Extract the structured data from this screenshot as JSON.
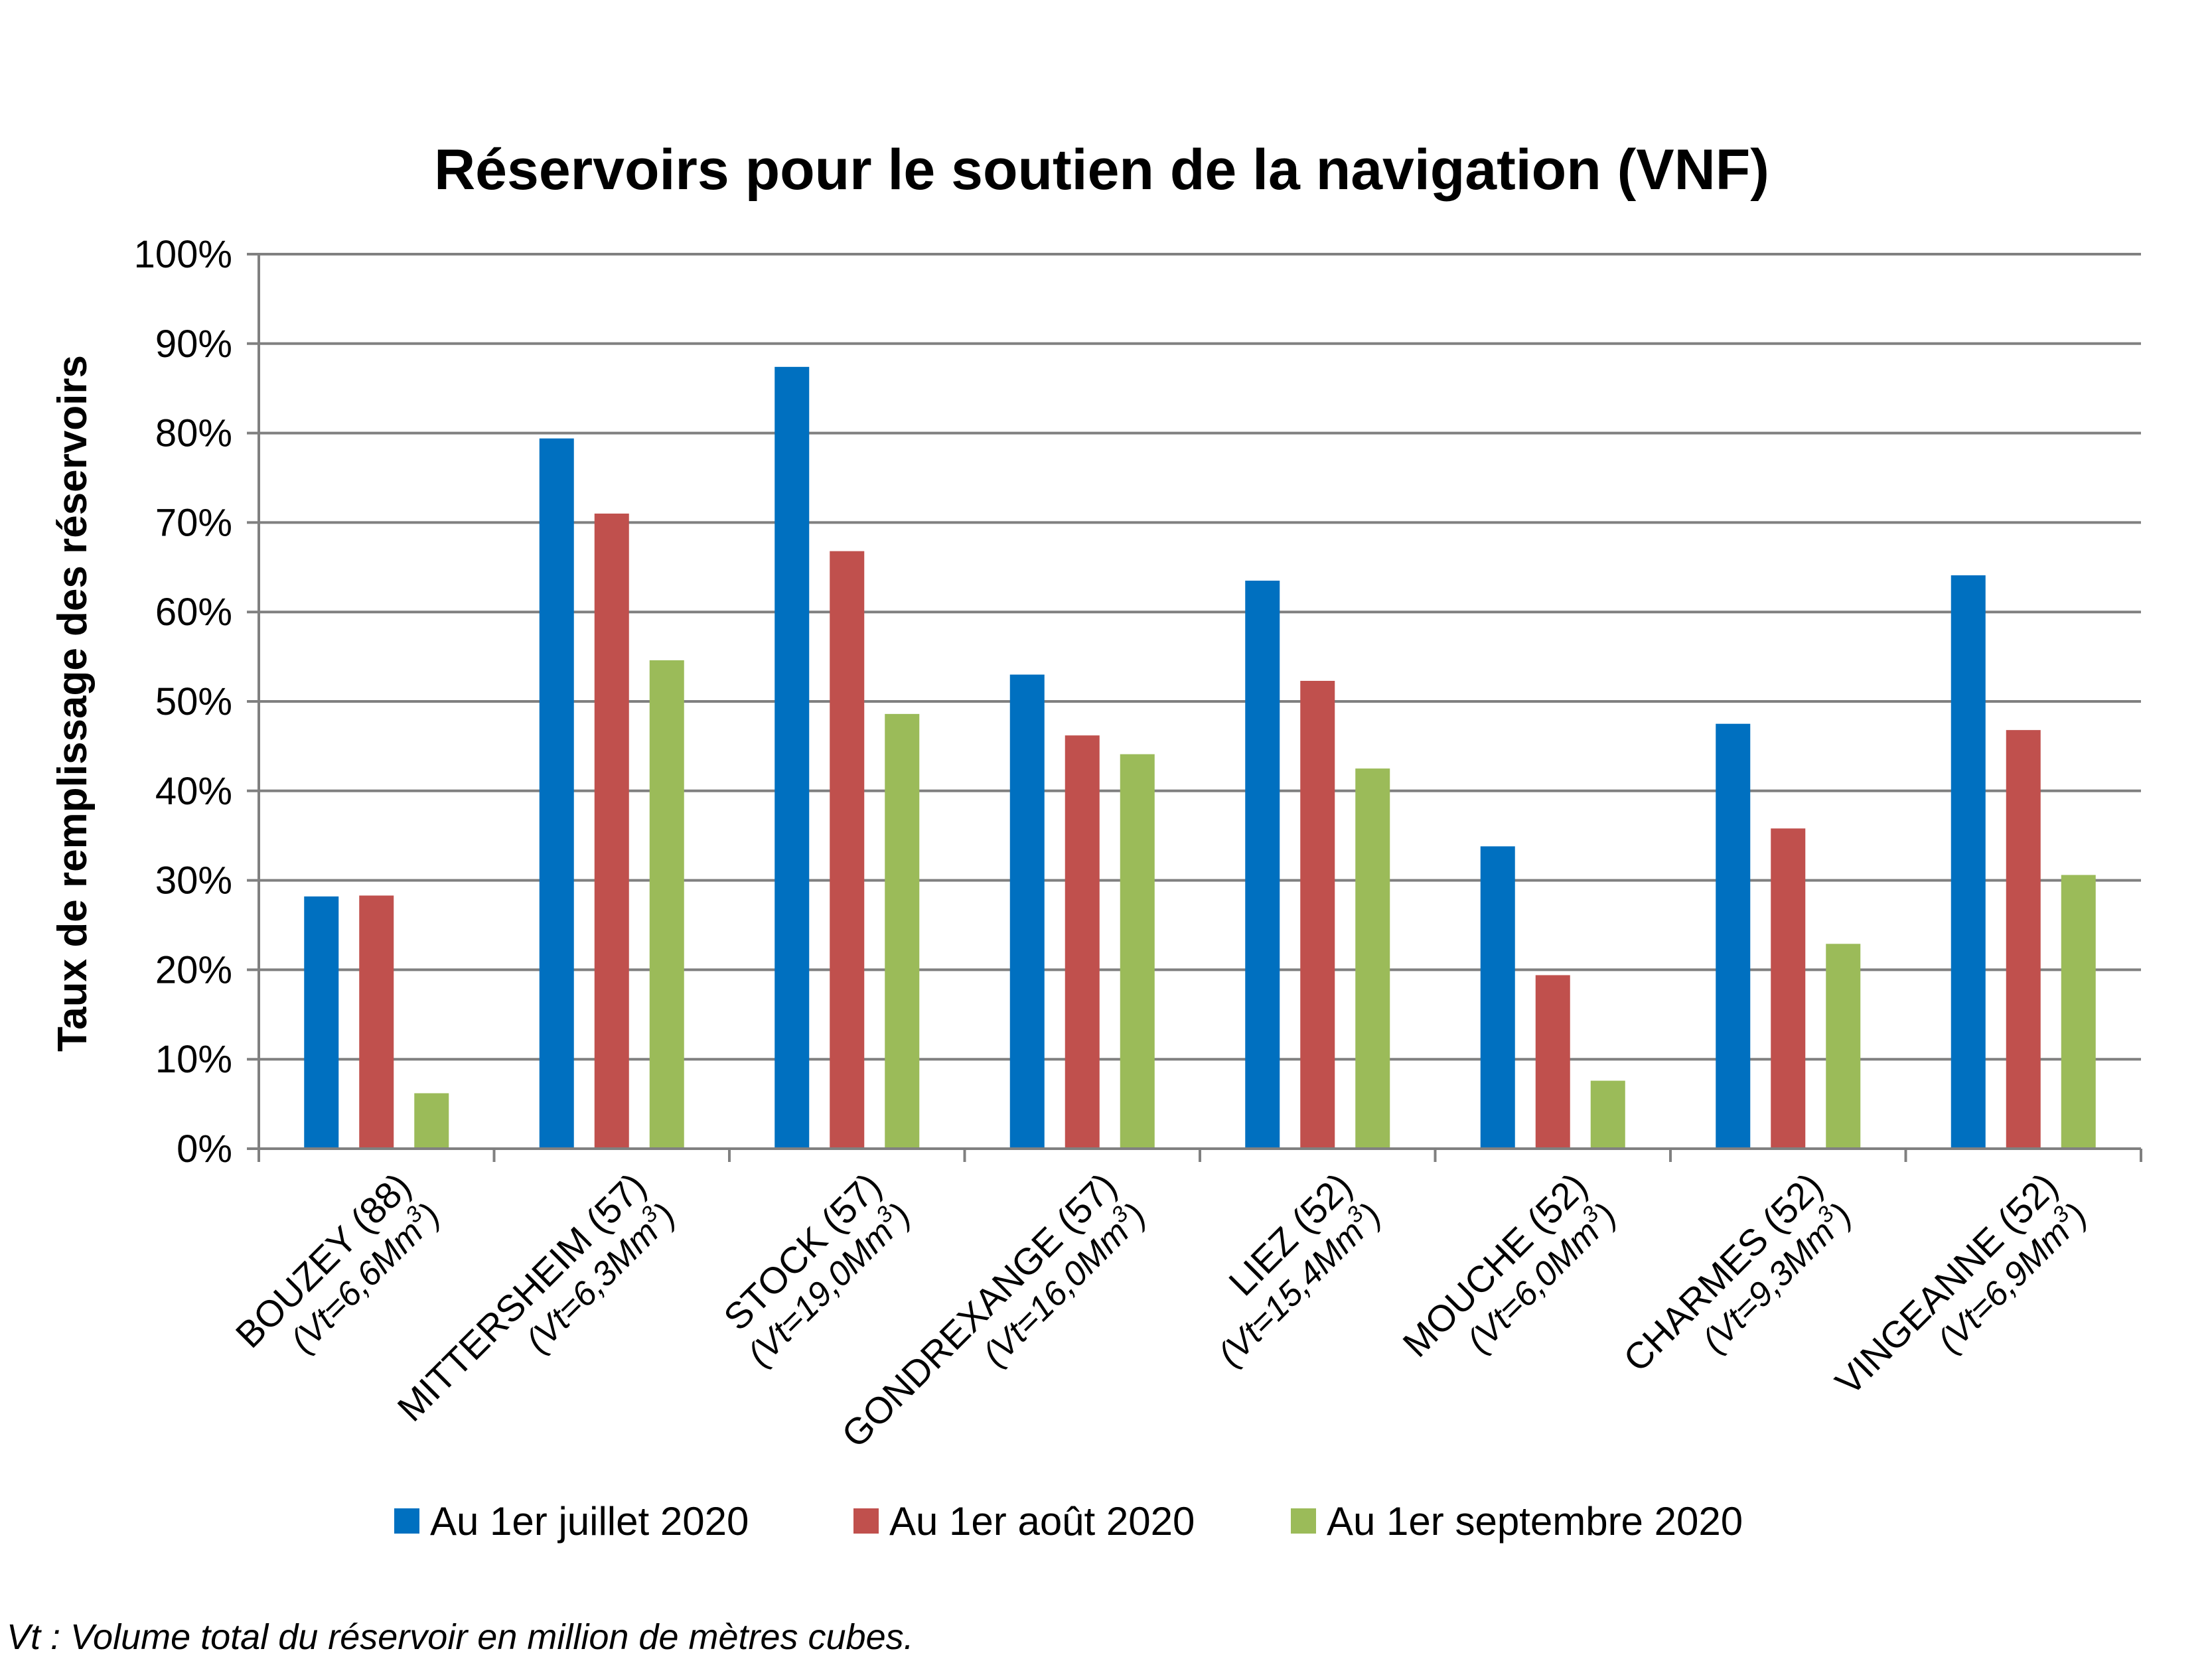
{
  "chart_data": {
    "type": "bar",
    "title": "Réservoirs pour le soutien de la navigation (VNF)",
    "ylabel": "Taux de remplissage des réservoirs",
    "xlabel": "",
    "ylim": [
      0,
      100
    ],
    "y_ticks": [
      "0%",
      "10%",
      "20%",
      "30%",
      "40%",
      "50%",
      "60%",
      "70%",
      "80%",
      "90%",
      "100%"
    ],
    "grid": true,
    "legend_position": "bottom",
    "categories": [
      "BOUZEY (88) (Vt=6,6Mm3)",
      "MITTERSHEIM (57) (Vt=6,3Mm3)",
      "STOCK (57) (Vt=19,0Mm3)",
      "GONDREXANGE (57) (Vt=16,0Mm3)",
      "LIEZ (52) (Vt=15,4Mm3)",
      "MOUCHE (52) (Vt=6,0Mm3)",
      "CHARMES (52) (Vt=9,3Mm3)",
      "VINGEANNE (52) (Vt=6,9Mm3)"
    ],
    "category_labels": [
      {
        "name": "BOUZEY (88)",
        "volume": "(Vt=6,6Mm",
        "sup": "3",
        "close": ")"
      },
      {
        "name": "MITTERSHEIM (57)",
        "volume": "(Vt=6,3Mm",
        "sup": "3",
        "close": ")"
      },
      {
        "name": "STOCK (57)",
        "volume": "(Vt=19,0Mm",
        "sup": "3",
        "close": ")"
      },
      {
        "name": "GONDREXANGE (57)",
        "volume": "(Vt=16,0Mm",
        "sup": "3",
        "close": ")"
      },
      {
        "name": "LIEZ (52)",
        "volume": "(Vt=15,4Mm",
        "sup": "3",
        "close": ")"
      },
      {
        "name": "MOUCHE (52)",
        "volume": "(Vt=6,0Mm",
        "sup": "3",
        "close": ")"
      },
      {
        "name": "CHARMES (52)",
        "volume": "(Vt=9,3Mm",
        "sup": "3",
        "close": ")"
      },
      {
        "name": "VINGEANNE (52)",
        "volume": "(Vt=6,9Mm",
        "sup": "3",
        "close": ")"
      }
    ],
    "series": [
      {
        "name": "Au 1er juillet 2020",
        "color": "#0070C0",
        "values": [
          28.2,
          79.4,
          87.4,
          53.0,
          63.5,
          33.8,
          47.5,
          64.1
        ]
      },
      {
        "name": "Au 1er août 2020",
        "color": "#C0504D",
        "values": [
          28.3,
          71.0,
          66.8,
          46.2,
          52.3,
          19.4,
          35.8,
          46.8
        ]
      },
      {
        "name": "Au 1er septembre 2020",
        "color": "#9BBB59",
        "values": [
          6.2,
          54.6,
          48.6,
          44.1,
          42.5,
          7.6,
          22.9,
          30.6
        ]
      }
    ]
  },
  "footnote": "Vt : Volume total du réservoir en million de mètres cubes."
}
